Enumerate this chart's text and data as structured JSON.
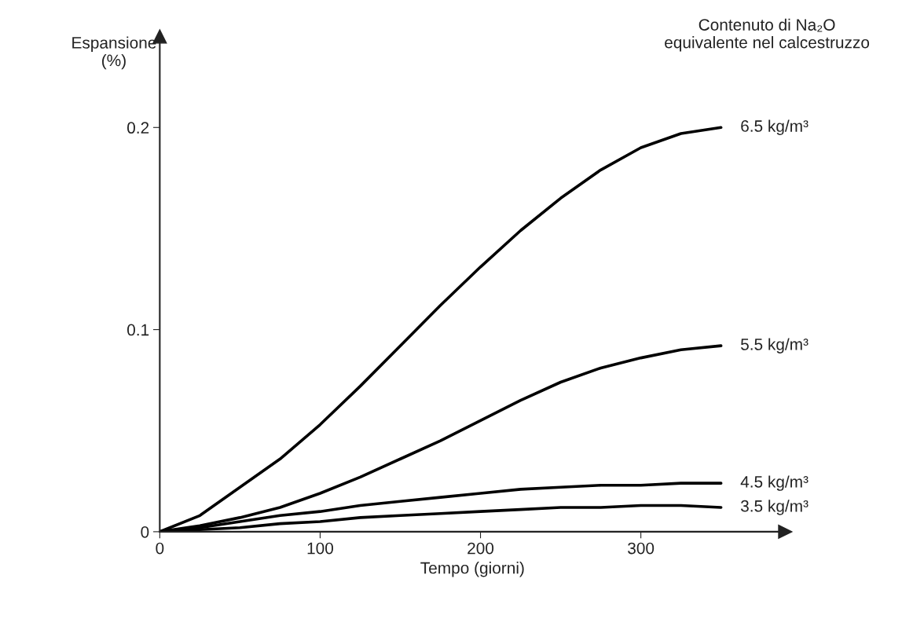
{
  "chart_data": {
    "type": "line",
    "xlabel": "Tempo (giorni)",
    "ylabel": "Espansione\n(%)",
    "annotations": [
      "Contenuto di Na₂O\nequivalente nel calcestruzzo"
    ],
    "x": [
      0,
      25,
      50,
      75,
      100,
      125,
      150,
      175,
      200,
      225,
      250,
      275,
      300,
      325,
      350
    ],
    "series": [
      {
        "name": "6.5 kg/m³",
        "color": "#000000",
        "values": [
          0,
          0.008,
          0.022,
          0.036,
          0.053,
          0.072,
          0.092,
          0.112,
          0.131,
          0.149,
          0.165,
          0.179,
          0.19,
          0.197,
          0.2
        ]
      },
      {
        "name": "5.5 kg/m³",
        "color": "#000000",
        "values": [
          0,
          0.003,
          0.007,
          0.012,
          0.019,
          0.027,
          0.036,
          0.045,
          0.055,
          0.065,
          0.074,
          0.081,
          0.086,
          0.09,
          0.092
        ]
      },
      {
        "name": "4.5 kg/m³",
        "color": "#000000",
        "values": [
          0,
          0.002,
          0.005,
          0.008,
          0.01,
          0.013,
          0.015,
          0.017,
          0.019,
          0.021,
          0.022,
          0.023,
          0.023,
          0.024,
          0.024
        ]
      },
      {
        "name": "3.5 kg/m³",
        "color": "#000000",
        "values": [
          0,
          0.001,
          0.002,
          0.004,
          0.005,
          0.007,
          0.008,
          0.009,
          0.01,
          0.011,
          0.012,
          0.012,
          0.013,
          0.013,
          0.012
        ]
      }
    ],
    "xlim": [
      0,
      390
    ],
    "ylim": [
      0,
      0.245
    ],
    "xticks": [
      0,
      100,
      200,
      300
    ],
    "yticks": [
      0,
      0.1,
      0.2
    ],
    "grid": false,
    "legend": false,
    "marker": "none",
    "line_style": "solid"
  }
}
